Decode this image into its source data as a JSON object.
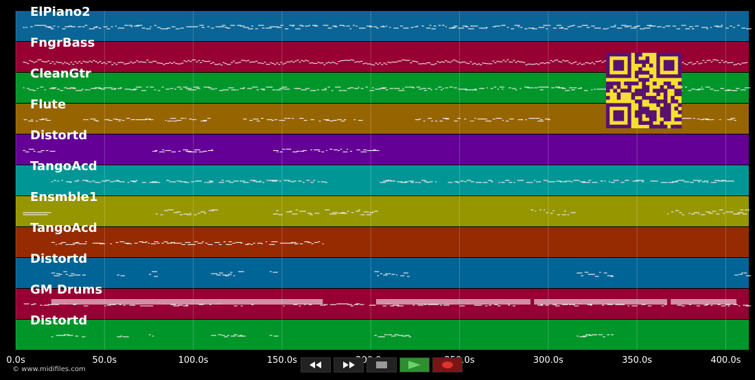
{
  "tracks": [
    {
      "name": "ElPiano2",
      "color": "#0a6496",
      "pattern": "dense"
    },
    {
      "name": "FngrBass",
      "color": "#960032",
      "pattern": "wave"
    },
    {
      "name": "CleanGtr",
      "color": "#00962a",
      "pattern": "dense"
    },
    {
      "name": "Flute",
      "color": "#966400",
      "pattern": "phrases"
    },
    {
      "name": "Distortd",
      "color": "#640096",
      "pattern": "sparse"
    },
    {
      "name": "TangoAcd",
      "color": "#009696",
      "pattern": "dense-light"
    },
    {
      "name": "Ensmble1",
      "color": "#969600",
      "pattern": "blocks"
    },
    {
      "name": "TangoAcd",
      "color": "#962a00",
      "pattern": "early"
    },
    {
      "name": "Distortd",
      "color": "#006496",
      "pattern": "scattered"
    },
    {
      "name": "GM Drums",
      "color": "#960032",
      "pattern": "drums"
    },
    {
      "name": "Distortd",
      "color": "#00962a",
      "pattern": "scattered-low"
    }
  ],
  "timeline": {
    "min": 0,
    "max": 413,
    "ticks": [
      {
        "value": 0,
        "label": "0.0s"
      },
      {
        "value": 50,
        "label": "50.0s"
      },
      {
        "value": 100,
        "label": "100.0s"
      },
      {
        "value": 150,
        "label": "150.0s"
      },
      {
        "value": 200,
        "label": "200.0s"
      },
      {
        "value": 250,
        "label": "250.0s"
      },
      {
        "value": 300,
        "label": "300.0s"
      },
      {
        "value": 350,
        "label": "350.0s"
      },
      {
        "value": 400,
        "label": "400.0s"
      }
    ]
  },
  "qr_code": {
    "icon": "qr-code-icon",
    "fg": "#5a1070",
    "bg": "#f5e030"
  },
  "copyright": "© www.midifiles.com",
  "transport": {
    "rewind_icon": "rewind-icon",
    "fast_forward_icon": "fast-forward-icon",
    "stop_icon": "stop-icon",
    "play_icon": "play-icon",
    "record_icon": "record-icon"
  }
}
